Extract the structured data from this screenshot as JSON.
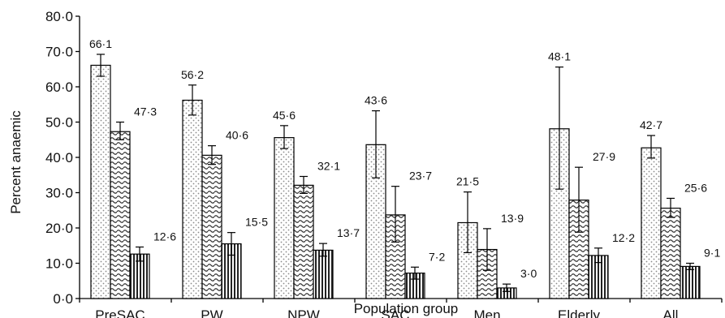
{
  "chart_data": {
    "type": "bar",
    "title": "",
    "xlabel": "Population group",
    "ylabel": "Percent anaemic",
    "categories": [
      "PreSAC",
      "PW",
      "NPW",
      "SAC",
      "Men",
      "Elderly",
      "All"
    ],
    "ylim": [
      0,
      80
    ],
    "yticks": [
      "0·0",
      "10·0",
      "20·0",
      "30·0",
      "40·0",
      "50·0",
      "60·0",
      "70·0",
      "80·0"
    ],
    "grid": false,
    "legend": "none",
    "series": [
      {
        "pattern": "dots",
        "values": [
          66.1,
          56.2,
          45.6,
          43.6,
          21.5,
          48.1,
          42.7
        ],
        "labels": [
          "66·1",
          "56·2",
          "45·6",
          "43·6",
          "21·5",
          "48·1",
          "42·7"
        ],
        "err_low": [
          63.0,
          52.0,
          42.5,
          34.2,
          13.0,
          31.0,
          39.8
        ],
        "err_high": [
          69.2,
          60.5,
          49.0,
          53.2,
          30.2,
          65.6,
          46.2
        ]
      },
      {
        "pattern": "waves",
        "values": [
          47.3,
          40.6,
          32.1,
          23.7,
          13.9,
          27.9,
          25.6
        ],
        "labels": [
          "47·3",
          "40·6",
          "32·1",
          "23·7",
          "13·9",
          "27·9",
          "25·6"
        ],
        "err_low": [
          45.0,
          38.0,
          29.8,
          16.0,
          8.0,
          18.8,
          23.0
        ],
        "err_high": [
          50.0,
          43.3,
          34.6,
          31.8,
          19.8,
          37.2,
          28.4
        ]
      },
      {
        "pattern": "vertical-lines",
        "values": [
          12.6,
          15.5,
          13.7,
          7.2,
          3.0,
          12.2,
          9.1
        ],
        "labels": [
          "12·6",
          "15·5",
          "13·7",
          "7·2",
          "3·0",
          "12·2",
          "9·1"
        ],
        "err_low": [
          10.6,
          12.3,
          12.0,
          5.5,
          2.0,
          10.2,
          8.2
        ],
        "err_high": [
          14.6,
          18.7,
          15.6,
          8.9,
          4.1,
          14.3,
          10.0
        ]
      }
    ]
  }
}
